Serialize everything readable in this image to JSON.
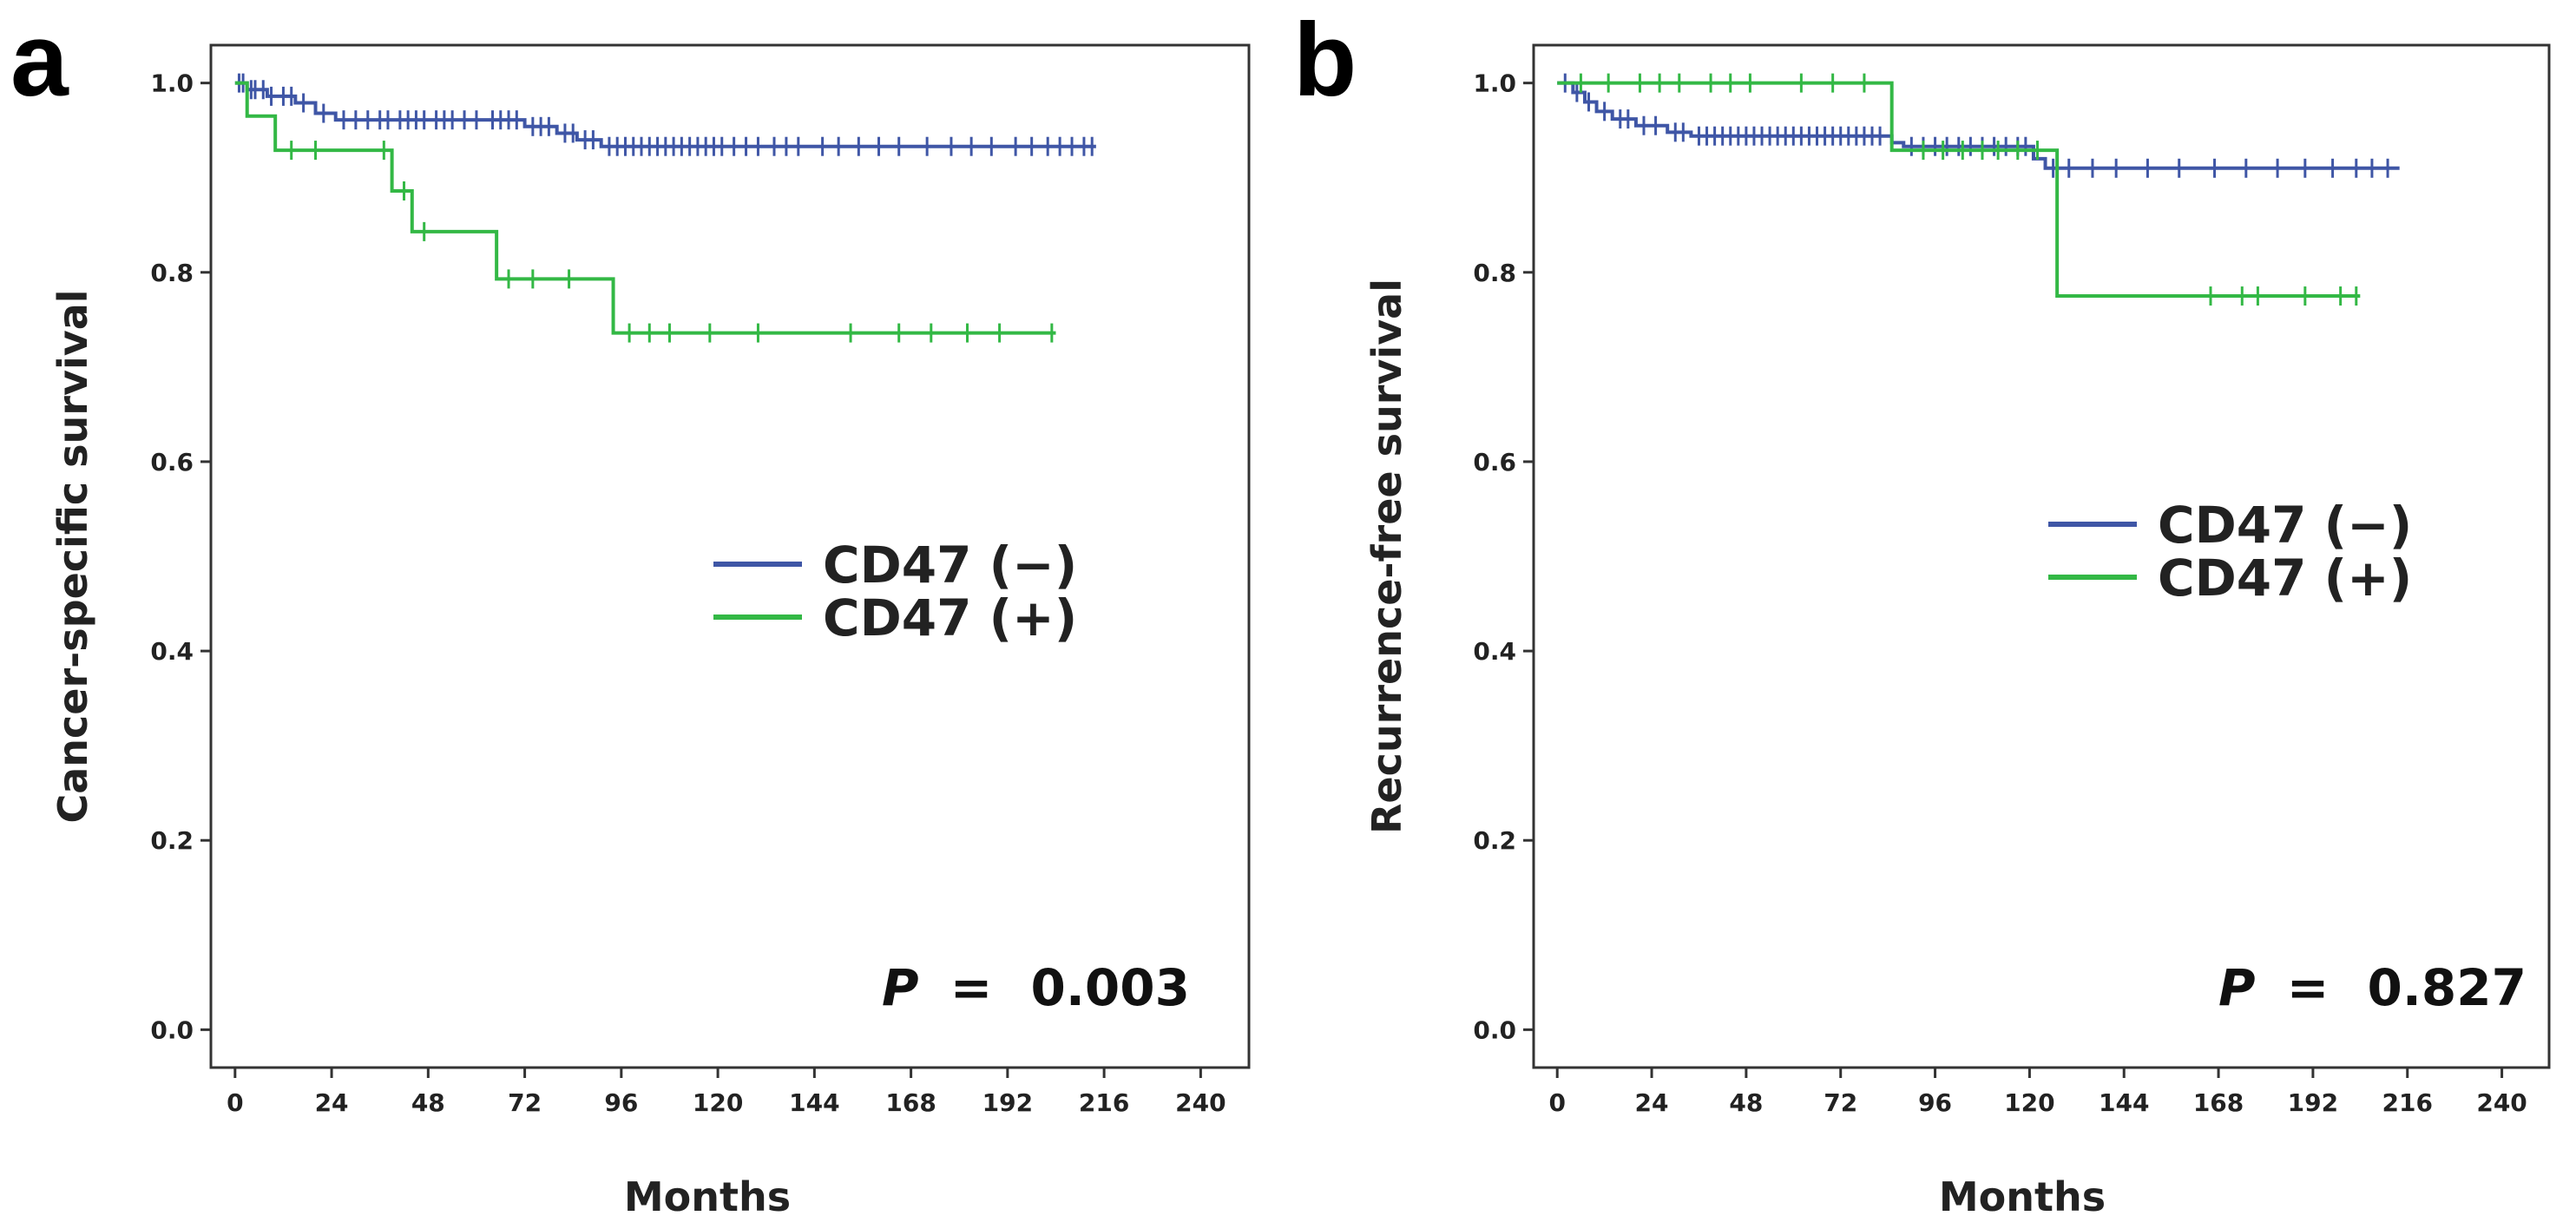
{
  "colors": {
    "blue": "#3f56a6",
    "green": "#33b845",
    "frame": "#333333",
    "text": "#222222"
  },
  "chart_data": [
    {
      "type": "line",
      "panel_label": "a",
      "xlabel": "Months",
      "ylabel": "Cancer-specific survival",
      "xlim": [
        -6,
        252
      ],
      "ylim": [
        -0.04,
        1.04
      ],
      "xticks": [
        0,
        24,
        48,
        72,
        96,
        120,
        144,
        168,
        192,
        216,
        240
      ],
      "xtick_labels": [
        "0",
        "24",
        "48",
        "72",
        "96",
        "120",
        "144",
        "168",
        "192",
        "216",
        "240"
      ],
      "yticks": [
        0.0,
        0.2,
        0.4,
        0.6,
        0.8,
        1.0
      ],
      "ytick_labels": [
        "0.0",
        "0.2",
        "0.4",
        "0.6",
        "0.8",
        "1.0"
      ],
      "legend": {
        "placement": "center-right",
        "entries": [
          "CD47 (−)",
          "CD47 (+)"
        ]
      },
      "pvalue": {
        "label": "P",
        "equals": "=",
        "value": "0.003"
      },
      "series": [
        {
          "name": "CD47 (−)",
          "color": "#3f56a6",
          "steps": [
            [
              0,
              1.0
            ],
            [
              3,
              0.993
            ],
            [
              8,
              0.986
            ],
            [
              15,
              0.979
            ],
            [
              20,
              0.968
            ],
            [
              25,
              0.961
            ],
            [
              72,
              0.954
            ],
            [
              80,
              0.947
            ],
            [
              85,
              0.94
            ],
            [
              91,
              0.933
            ],
            [
              214,
              0.933
            ]
          ],
          "censored": [
            1,
            2,
            4,
            5,
            7,
            9,
            12,
            14,
            17,
            22,
            27,
            30,
            33,
            36,
            38,
            41,
            43,
            45,
            47,
            50,
            52,
            54,
            57,
            60,
            64,
            66,
            68,
            70,
            74,
            76,
            78,
            82,
            84,
            87,
            89,
            93,
            95,
            97,
            99,
            101,
            103,
            105,
            107,
            109,
            111,
            113,
            115,
            117,
            119,
            121,
            124,
            127,
            130,
            134,
            137,
            140,
            146,
            150,
            155,
            160,
            165,
            172,
            178,
            183,
            188,
            194,
            198,
            202,
            205,
            208,
            211,
            213
          ]
        },
        {
          "name": "CD47 (+)",
          "color": "#33b845",
          "steps": [
            [
              0,
              1.0
            ],
            [
              3,
              0.965
            ],
            [
              10,
              0.929
            ],
            [
              39,
              0.886
            ],
            [
              44,
              0.843
            ],
            [
              65,
              0.793
            ],
            [
              94,
              0.736
            ],
            [
              204,
              0.736
            ]
          ],
          "censored": [
            14,
            20,
            37,
            42,
            47,
            68,
            74,
            83,
            98,
            103,
            108,
            118,
            130,
            153,
            165,
            173,
            182,
            190,
            203
          ]
        }
      ]
    },
    {
      "type": "line",
      "panel_label": "b",
      "xlabel": "Months",
      "ylabel": "Recurrence-free survival",
      "xlim": [
        -6,
        252
      ],
      "ylim": [
        -0.04,
        1.04
      ],
      "xticks": [
        0,
        24,
        48,
        72,
        96,
        120,
        144,
        168,
        192,
        216,
        240
      ],
      "xtick_labels": [
        "0",
        "24",
        "48",
        "72",
        "96",
        "120",
        "144",
        "168",
        "192",
        "216",
        "240"
      ],
      "yticks": [
        0.0,
        0.2,
        0.4,
        0.6,
        0.8,
        1.0
      ],
      "ytick_labels": [
        "0.0",
        "0.2",
        "0.4",
        "0.6",
        "0.8",
        "1.0"
      ],
      "legend": {
        "placement": "center-right",
        "entries": [
          "CD47 (−)",
          "CD47 (+)"
        ]
      },
      "pvalue": {
        "label": "P",
        "equals": "=",
        "value": "0.827"
      },
      "series": [
        {
          "name": "CD47 (−)",
          "color": "#3f56a6",
          "steps": [
            [
              0,
              1.0
            ],
            [
              4,
              0.99
            ],
            [
              7,
              0.98
            ],
            [
              10,
              0.97
            ],
            [
              14,
              0.962
            ],
            [
              20,
              0.955
            ],
            [
              28,
              0.948
            ],
            [
              34,
              0.944
            ],
            [
              85,
              0.937
            ],
            [
              88,
              0.933
            ],
            [
              121,
              0.92
            ],
            [
              124,
              0.91
            ],
            [
              214,
              0.91
            ]
          ],
          "censored": [
            2,
            5,
            8,
            12,
            16,
            18,
            22,
            25,
            30,
            32,
            36,
            38,
            40,
            42,
            44,
            46,
            48,
            50,
            52,
            54,
            56,
            58,
            60,
            62,
            64,
            66,
            68,
            70,
            72,
            74,
            76,
            78,
            80,
            82,
            90,
            93,
            96,
            99,
            102,
            105,
            108,
            111,
            114,
            117,
            119,
            126,
            130,
            136,
            142,
            150,
            158,
            167,
            175,
            183,
            190,
            197,
            203,
            207,
            211
          ]
        },
        {
          "name": "CD47 (+)",
          "color": "#33b845",
          "steps": [
            [
              0,
              1.0
            ],
            [
              85,
              0.929
            ],
            [
              127,
              0.775
            ],
            [
              204,
              0.775
            ]
          ],
          "censored": [
            6,
            13,
            21,
            26,
            31,
            39,
            44,
            49,
            62,
            70,
            78,
            93,
            98,
            103,
            108,
            112,
            117,
            122,
            166,
            174,
            178,
            190,
            199,
            203
          ]
        }
      ]
    }
  ]
}
